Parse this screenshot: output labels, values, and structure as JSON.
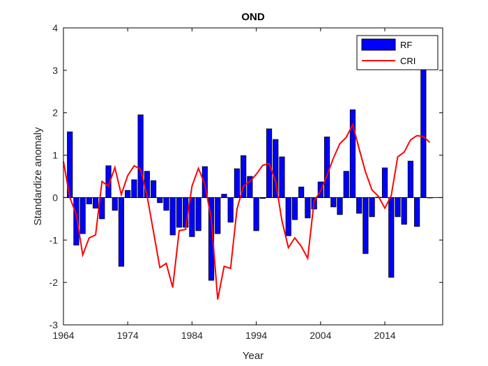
{
  "chart_data": {
    "type": "bar",
    "title": "OND",
    "xlabel": "Year",
    "ylabel": "Standardize anomaly",
    "xlim": [
      1964,
      2023
    ],
    "ylim": [
      -3,
      4
    ],
    "xticks": [
      1964,
      1974,
      1984,
      1994,
      2004,
      2014
    ],
    "yticks": [
      -3,
      -2,
      -1,
      0,
      1,
      2,
      3,
      4
    ],
    "legend_position": "top-right",
    "colors": {
      "bar": "#0000ff",
      "line": "#ff0000",
      "axis": "#000000"
    },
    "series": [
      {
        "name": "RF",
        "kind": "bar",
        "x": [
          1965,
          1966,
          1967,
          1968,
          1969,
          1970,
          1971,
          1972,
          1973,
          1974,
          1975,
          1976,
          1977,
          1978,
          1979,
          1980,
          1981,
          1982,
          1983,
          1984,
          1985,
          1986,
          1987,
          1988,
          1989,
          1990,
          1991,
          1992,
          1993,
          1994,
          1995,
          1996,
          1997,
          1998,
          1999,
          2000,
          2001,
          2002,
          2003,
          2004,
          2005,
          2006,
          2007,
          2008,
          2009,
          2010,
          2011,
          2012,
          2013,
          2014,
          2015,
          2016,
          2017,
          2018,
          2019,
          2020,
          2021
        ],
        "values": [
          1.55,
          -1.12,
          -0.85,
          -0.15,
          -0.25,
          -0.5,
          0.75,
          -0.3,
          -1.62,
          0.17,
          0.42,
          1.95,
          0.62,
          0.4,
          -0.12,
          -0.3,
          -0.88,
          -0.7,
          -0.7,
          -0.92,
          -0.78,
          0.73,
          -1.95,
          -0.85,
          0.08,
          -0.58,
          0.68,
          0.99,
          0.5,
          -0.78,
          -0.02,
          1.62,
          1.37,
          0.96,
          -0.9,
          -0.52,
          0.25,
          -0.48,
          -0.27,
          0.37,
          1.43,
          -0.22,
          -0.4,
          0.62,
          2.07,
          -0.37,
          -1.32,
          -0.45,
          0.01,
          0.7,
          -1.88,
          -0.45,
          -0.63,
          0.86,
          -0.68,
          3.28,
          0.0
        ]
      },
      {
        "name": "CRI",
        "kind": "line",
        "x": [
          1964,
          1965,
          1966,
          1967,
          1968,
          1969,
          1970,
          1971,
          1972,
          1973,
          1974,
          1975,
          1976,
          1977,
          1978,
          1979,
          1980,
          1981,
          1982,
          1983,
          1984,
          1985,
          1986,
          1987,
          1988,
          1989,
          1990,
          1991,
          1992,
          1993,
          1994,
          1995,
          1996,
          1997,
          1998,
          1999,
          2000,
          2001,
          2002,
          2003,
          2004,
          2005,
          2006,
          2007,
          2008,
          2009,
          2010,
          2011,
          2012,
          2013,
          2014,
          2015,
          2016,
          2017,
          2018,
          2019,
          2020,
          2021
        ],
        "values": [
          0.85,
          0.0,
          -0.4,
          -1.35,
          -0.95,
          -0.88,
          0.38,
          0.27,
          0.71,
          0.07,
          0.52,
          0.75,
          0.67,
          0.05,
          -0.8,
          -1.65,
          -1.55,
          -2.12,
          -0.78,
          -0.75,
          0.27,
          0.69,
          0.31,
          -0.5,
          -2.4,
          -1.62,
          -1.67,
          -0.27,
          0.27,
          0.38,
          0.55,
          0.76,
          0.8,
          0.38,
          -0.55,
          -1.18,
          -0.95,
          -1.15,
          -1.43,
          -0.08,
          0.15,
          0.52,
          0.93,
          1.27,
          1.42,
          1.72,
          1.15,
          0.6,
          0.18,
          0.03,
          -0.25,
          0.05,
          0.96,
          1.07,
          1.36,
          1.46,
          1.44,
          1.3
        ]
      }
    ]
  }
}
